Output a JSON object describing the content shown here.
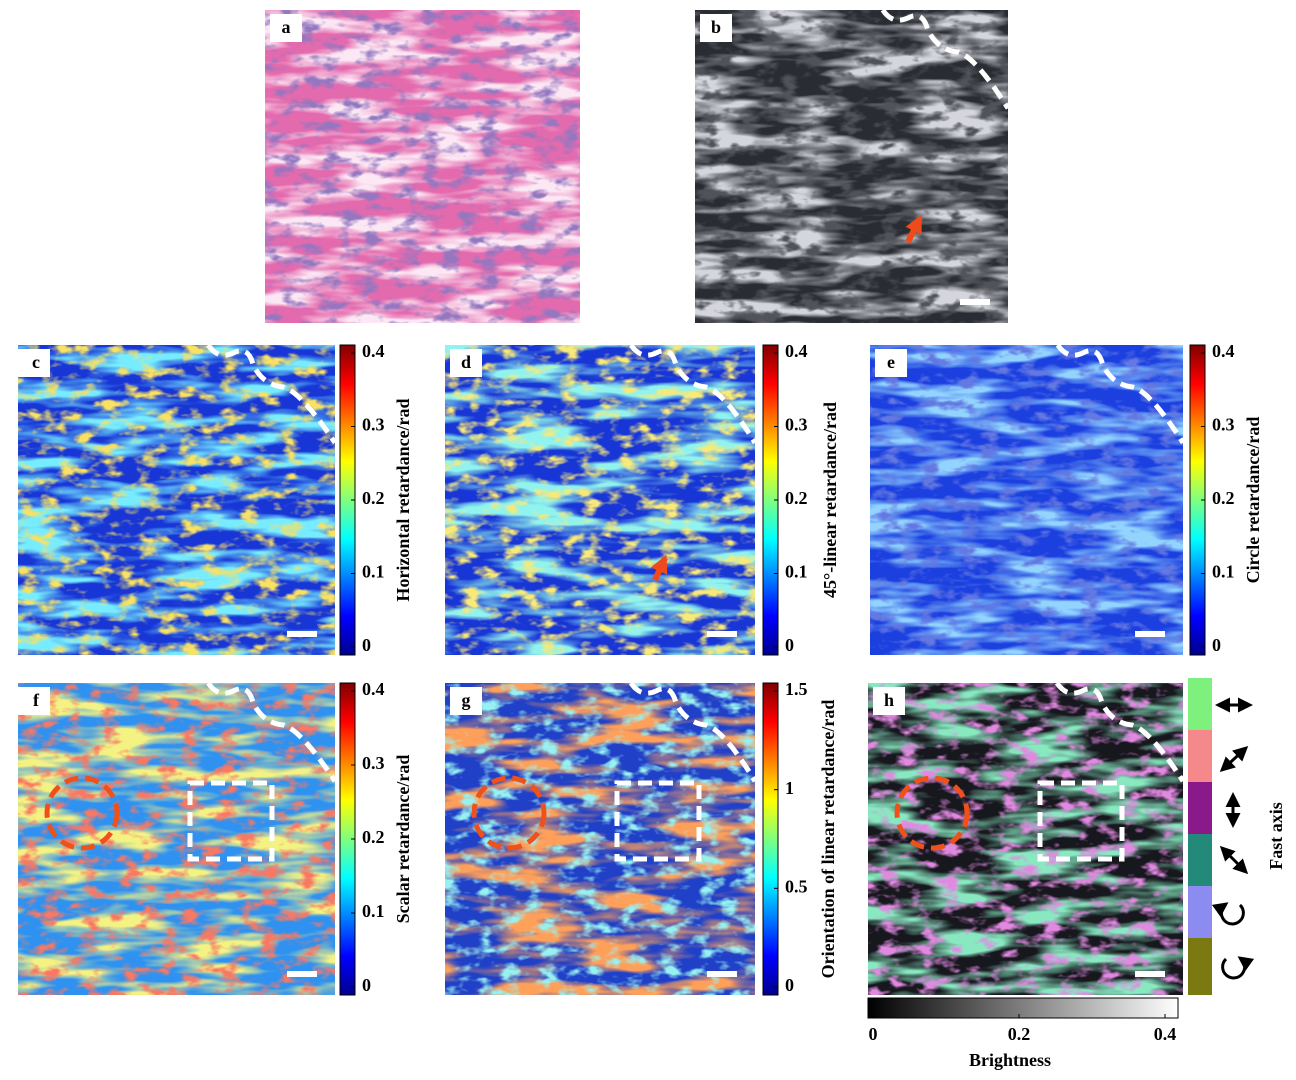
{
  "panels": [
    {
      "label": "a"
    },
    {
      "label": "b"
    },
    {
      "label": "c"
    },
    {
      "label": "d"
    },
    {
      "label": "e"
    },
    {
      "label": "f"
    },
    {
      "label": "g"
    },
    {
      "label": "h"
    }
  ],
  "colorbars": [
    {
      "label": "Horizontal retardance/rad",
      "lim": [
        0,
        0.4
      ],
      "ticks": [
        0,
        0.1,
        0.2,
        0.3,
        0.4
      ]
    },
    {
      "label": "45°-linear retardance/rad",
      "lim": [
        0,
        0.4
      ],
      "ticks": [
        0,
        0.1,
        0.2,
        0.3,
        0.4
      ]
    },
    {
      "label": "Circle retardance/rad",
      "lim": [
        0,
        0.4
      ],
      "ticks": [
        0,
        0.1,
        0.2,
        0.3,
        0.4
      ]
    },
    {
      "label": "Scalar retardance/rad",
      "lim": [
        0,
        0.4
      ],
      "ticks": [
        0,
        0.1,
        0.2,
        0.3,
        0.4
      ]
    },
    {
      "label": "Orientation of linear retardance/rad",
      "lim": [
        0,
        1.5
      ],
      "ticks": [
        0,
        0.5,
        1,
        1.5
      ]
    }
  ],
  "fast_axis": {
    "label": "Fast axis"
  },
  "brightness": {
    "label": "Brightness",
    "lim": [
      0,
      0.4
    ],
    "ticks": [
      0,
      0.2,
      0.4
    ]
  }
}
